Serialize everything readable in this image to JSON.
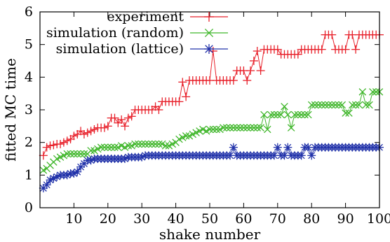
{
  "chart_data": {
    "type": "scatter",
    "xlabel": "shake number",
    "ylabel": "fitted MC time",
    "xlim": [
      0,
      100
    ],
    "ylim": [
      0,
      6
    ],
    "x_ticks": [
      "10",
      "20",
      "30",
      "40",
      "50",
      "60",
      "70",
      "80",
      "90",
      "100"
    ],
    "y_ticks": [
      "0",
      "1",
      "2",
      "3",
      "4",
      "5",
      "6"
    ],
    "grid": false,
    "legend_position": "top-left",
    "series": [
      {
        "name": "experiment",
        "color": "#e8202a",
        "marker": "plus",
        "points": [
          [
            1,
            1.6
          ],
          [
            2,
            1.85
          ],
          [
            3,
            1.9
          ],
          [
            4,
            1.92
          ],
          [
            5,
            1.95
          ],
          [
            6,
            1.95
          ],
          [
            7,
            2.0
          ],
          [
            8,
            2.05
          ],
          [
            9,
            2.1
          ],
          [
            10,
            2.2
          ],
          [
            11,
            2.25
          ],
          [
            12,
            2.35
          ],
          [
            13,
            2.25
          ],
          [
            14,
            2.3
          ],
          [
            15,
            2.35
          ],
          [
            16,
            2.4
          ],
          [
            17,
            2.45
          ],
          [
            18,
            2.45
          ],
          [
            19,
            2.45
          ],
          [
            20,
            2.5
          ],
          [
            21,
            2.75
          ],
          [
            22,
            2.75
          ],
          [
            23,
            2.6
          ],
          [
            24,
            2.7
          ],
          [
            25,
            2.5
          ],
          [
            26,
            2.75
          ],
          [
            27,
            2.8
          ],
          [
            28,
            3.0
          ],
          [
            29,
            3.0
          ],
          [
            30,
            3.0
          ],
          [
            31,
            3.0
          ],
          [
            32,
            3.0
          ],
          [
            33,
            3.0
          ],
          [
            34,
            3.1
          ],
          [
            35,
            3.0
          ],
          [
            36,
            3.25
          ],
          [
            37,
            3.25
          ],
          [
            38,
            3.25
          ],
          [
            39,
            3.25
          ],
          [
            40,
            3.25
          ],
          [
            41,
            3.25
          ],
          [
            42,
            3.85
          ],
          [
            43,
            3.4
          ],
          [
            44,
            3.9
          ],
          [
            45,
            3.9
          ],
          [
            46,
            3.9
          ],
          [
            47,
            3.9
          ],
          [
            48,
            3.9
          ],
          [
            49,
            3.9
          ],
          [
            50,
            3.9
          ],
          [
            51,
            4.8
          ],
          [
            52,
            3.9
          ],
          [
            53,
            3.9
          ],
          [
            54,
            3.9
          ],
          [
            55,
            3.9
          ],
          [
            56,
            3.9
          ],
          [
            57,
            3.9
          ],
          [
            58,
            4.2
          ],
          [
            59,
            4.2
          ],
          [
            60,
            4.2
          ],
          [
            61,
            3.9
          ],
          [
            62,
            4.2
          ],
          [
            63,
            4.5
          ],
          [
            64,
            4.8
          ],
          [
            65,
            4.2
          ],
          [
            66,
            4.85
          ],
          [
            67,
            4.85
          ],
          [
            68,
            4.85
          ],
          [
            69,
            4.85
          ],
          [
            70,
            4.85
          ],
          [
            71,
            4.7
          ],
          [
            72,
            4.7
          ],
          [
            73,
            4.7
          ],
          [
            74,
            4.7
          ],
          [
            75,
            4.7
          ],
          [
            76,
            4.7
          ],
          [
            77,
            4.85
          ],
          [
            78,
            4.85
          ],
          [
            79,
            4.85
          ],
          [
            80,
            4.85
          ],
          [
            81,
            4.85
          ],
          [
            82,
            4.85
          ],
          [
            83,
            4.85
          ],
          [
            84,
            5.3
          ],
          [
            85,
            5.3
          ],
          [
            86,
            5.3
          ],
          [
            87,
            4.85
          ],
          [
            88,
            4.85
          ],
          [
            89,
            4.85
          ],
          [
            90,
            4.85
          ],
          [
            91,
            5.3
          ],
          [
            92,
            5.3
          ],
          [
            93,
            4.85
          ],
          [
            94,
            5.3
          ],
          [
            95,
            5.3
          ],
          [
            96,
            5.3
          ],
          [
            97,
            5.3
          ],
          [
            98,
            5.3
          ],
          [
            99,
            5.3
          ],
          [
            100,
            5.3
          ]
        ]
      },
      {
        "name": "simulation (random)",
        "color": "#3fb62a",
        "marker": "x",
        "points": [
          [
            1,
            1.15
          ],
          [
            2,
            1.2
          ],
          [
            3,
            1.3
          ],
          [
            4,
            1.4
          ],
          [
            5,
            1.5
          ],
          [
            6,
            1.55
          ],
          [
            7,
            1.6
          ],
          [
            8,
            1.65
          ],
          [
            9,
            1.65
          ],
          [
            10,
            1.65
          ],
          [
            11,
            1.65
          ],
          [
            12,
            1.65
          ],
          [
            13,
            1.65
          ],
          [
            14,
            1.65
          ],
          [
            15,
            1.75
          ],
          [
            16,
            1.75
          ],
          [
            17,
            1.8
          ],
          [
            18,
            1.85
          ],
          [
            19,
            1.85
          ],
          [
            20,
            1.85
          ],
          [
            21,
            1.85
          ],
          [
            22,
            1.85
          ],
          [
            23,
            1.85
          ],
          [
            24,
            1.9
          ],
          [
            25,
            1.85
          ],
          [
            26,
            1.9
          ],
          [
            27,
            1.9
          ],
          [
            28,
            1.95
          ],
          [
            29,
            1.95
          ],
          [
            30,
            1.95
          ],
          [
            31,
            1.95
          ],
          [
            32,
            1.95
          ],
          [
            33,
            1.95
          ],
          [
            34,
            1.95
          ],
          [
            35,
            1.95
          ],
          [
            36,
            1.95
          ],
          [
            37,
            1.9
          ],
          [
            38,
            1.9
          ],
          [
            39,
            1.95
          ],
          [
            40,
            2.0
          ],
          [
            41,
            2.1
          ],
          [
            42,
            2.15
          ],
          [
            43,
            2.2
          ],
          [
            44,
            2.2
          ],
          [
            45,
            2.25
          ],
          [
            46,
            2.3
          ],
          [
            47,
            2.35
          ],
          [
            48,
            2.4
          ],
          [
            49,
            2.35
          ],
          [
            50,
            2.4
          ],
          [
            51,
            2.4
          ],
          [
            52,
            2.4
          ],
          [
            53,
            2.4
          ],
          [
            54,
            2.45
          ],
          [
            55,
            2.45
          ],
          [
            56,
            2.45
          ],
          [
            57,
            2.45
          ],
          [
            58,
            2.45
          ],
          [
            59,
            2.45
          ],
          [
            60,
            2.45
          ],
          [
            61,
            2.45
          ],
          [
            62,
            2.45
          ],
          [
            63,
            2.45
          ],
          [
            64,
            2.45
          ],
          [
            65,
            2.45
          ],
          [
            66,
            2.85
          ],
          [
            67,
            2.4
          ],
          [
            68,
            2.85
          ],
          [
            69,
            2.85
          ],
          [
            70,
            2.85
          ],
          [
            71,
            2.85
          ],
          [
            72,
            3.1
          ],
          [
            73,
            2.85
          ],
          [
            74,
            2.45
          ],
          [
            75,
            2.85
          ],
          [
            76,
            2.85
          ],
          [
            77,
            2.85
          ],
          [
            78,
            2.85
          ],
          [
            79,
            2.85
          ],
          [
            80,
            3.15
          ],
          [
            81,
            3.15
          ],
          [
            82,
            3.15
          ],
          [
            83,
            3.15
          ],
          [
            84,
            3.15
          ],
          [
            85,
            3.15
          ],
          [
            86,
            3.15
          ],
          [
            87,
            3.15
          ],
          [
            88,
            3.15
          ],
          [
            89,
            3.15
          ],
          [
            90,
            2.9
          ],
          [
            91,
            2.9
          ],
          [
            92,
            3.15
          ],
          [
            93,
            3.15
          ],
          [
            94,
            3.15
          ],
          [
            95,
            3.55
          ],
          [
            96,
            3.15
          ],
          [
            97,
            3.15
          ],
          [
            98,
            3.55
          ],
          [
            99,
            3.55
          ],
          [
            100,
            3.55
          ]
        ]
      },
      {
        "name": "simulation (lattice)",
        "color": "#2233aa",
        "marker": "star",
        "points": [
          [
            1,
            0.6
          ],
          [
            2,
            0.7
          ],
          [
            3,
            0.85
          ],
          [
            4,
            0.9
          ],
          [
            5,
            0.95
          ],
          [
            6,
            1.0
          ],
          [
            7,
            1.0
          ],
          [
            8,
            1.0
          ],
          [
            9,
            1.05
          ],
          [
            10,
            1.05
          ],
          [
            11,
            1.1
          ],
          [
            12,
            1.25
          ],
          [
            13,
            1.35
          ],
          [
            14,
            1.45
          ],
          [
            15,
            1.45
          ],
          [
            16,
            1.5
          ],
          [
            17,
            1.5
          ],
          [
            18,
            1.5
          ],
          [
            19,
            1.5
          ],
          [
            20,
            1.5
          ],
          [
            21,
            1.5
          ],
          [
            22,
            1.5
          ],
          [
            23,
            1.5
          ],
          [
            24,
            1.5
          ],
          [
            25,
            1.5
          ],
          [
            26,
            1.55
          ],
          [
            27,
            1.55
          ],
          [
            28,
            1.55
          ],
          [
            29,
            1.55
          ],
          [
            30,
            1.55
          ],
          [
            31,
            1.6
          ],
          [
            32,
            1.6
          ],
          [
            33,
            1.6
          ],
          [
            34,
            1.6
          ],
          [
            35,
            1.6
          ],
          [
            36,
            1.6
          ],
          [
            37,
            1.6
          ],
          [
            38,
            1.6
          ],
          [
            39,
            1.6
          ],
          [
            40,
            1.6
          ],
          [
            41,
            1.6
          ],
          [
            42,
            1.6
          ],
          [
            43,
            1.6
          ],
          [
            44,
            1.6
          ],
          [
            45,
            1.6
          ],
          [
            46,
            1.6
          ],
          [
            47,
            1.6
          ],
          [
            48,
            1.6
          ],
          [
            49,
            1.6
          ],
          [
            50,
            1.6
          ],
          [
            51,
            1.6
          ],
          [
            52,
            1.6
          ],
          [
            53,
            1.6
          ],
          [
            54,
            1.6
          ],
          [
            55,
            1.6
          ],
          [
            56,
            1.6
          ],
          [
            57,
            1.85
          ],
          [
            58,
            1.6
          ],
          [
            59,
            1.6
          ],
          [
            60,
            1.6
          ],
          [
            61,
            1.6
          ],
          [
            62,
            1.6
          ],
          [
            63,
            1.6
          ],
          [
            64,
            1.6
          ],
          [
            65,
            1.6
          ],
          [
            66,
            1.6
          ],
          [
            67,
            1.6
          ],
          [
            68,
            1.6
          ],
          [
            69,
            1.6
          ],
          [
            70,
            1.85
          ],
          [
            71,
            1.6
          ],
          [
            72,
            1.6
          ],
          [
            73,
            1.85
          ],
          [
            74,
            1.6
          ],
          [
            75,
            1.6
          ],
          [
            76,
            1.6
          ],
          [
            77,
            1.6
          ],
          [
            78,
            1.85
          ],
          [
            79,
            1.85
          ],
          [
            80,
            1.6
          ],
          [
            81,
            1.85
          ],
          [
            82,
            1.85
          ],
          [
            83,
            1.85
          ],
          [
            84,
            1.85
          ],
          [
            85,
            1.85
          ],
          [
            86,
            1.85
          ],
          [
            87,
            1.85
          ],
          [
            88,
            1.85
          ],
          [
            89,
            1.85
          ],
          [
            90,
            1.85
          ],
          [
            91,
            1.85
          ],
          [
            92,
            1.85
          ],
          [
            93,
            1.85
          ],
          [
            94,
            1.85
          ],
          [
            95,
            1.85
          ],
          [
            96,
            1.85
          ],
          [
            97,
            1.85
          ],
          [
            98,
            1.85
          ],
          [
            99,
            1.85
          ],
          [
            100,
            1.85
          ]
        ]
      }
    ]
  }
}
